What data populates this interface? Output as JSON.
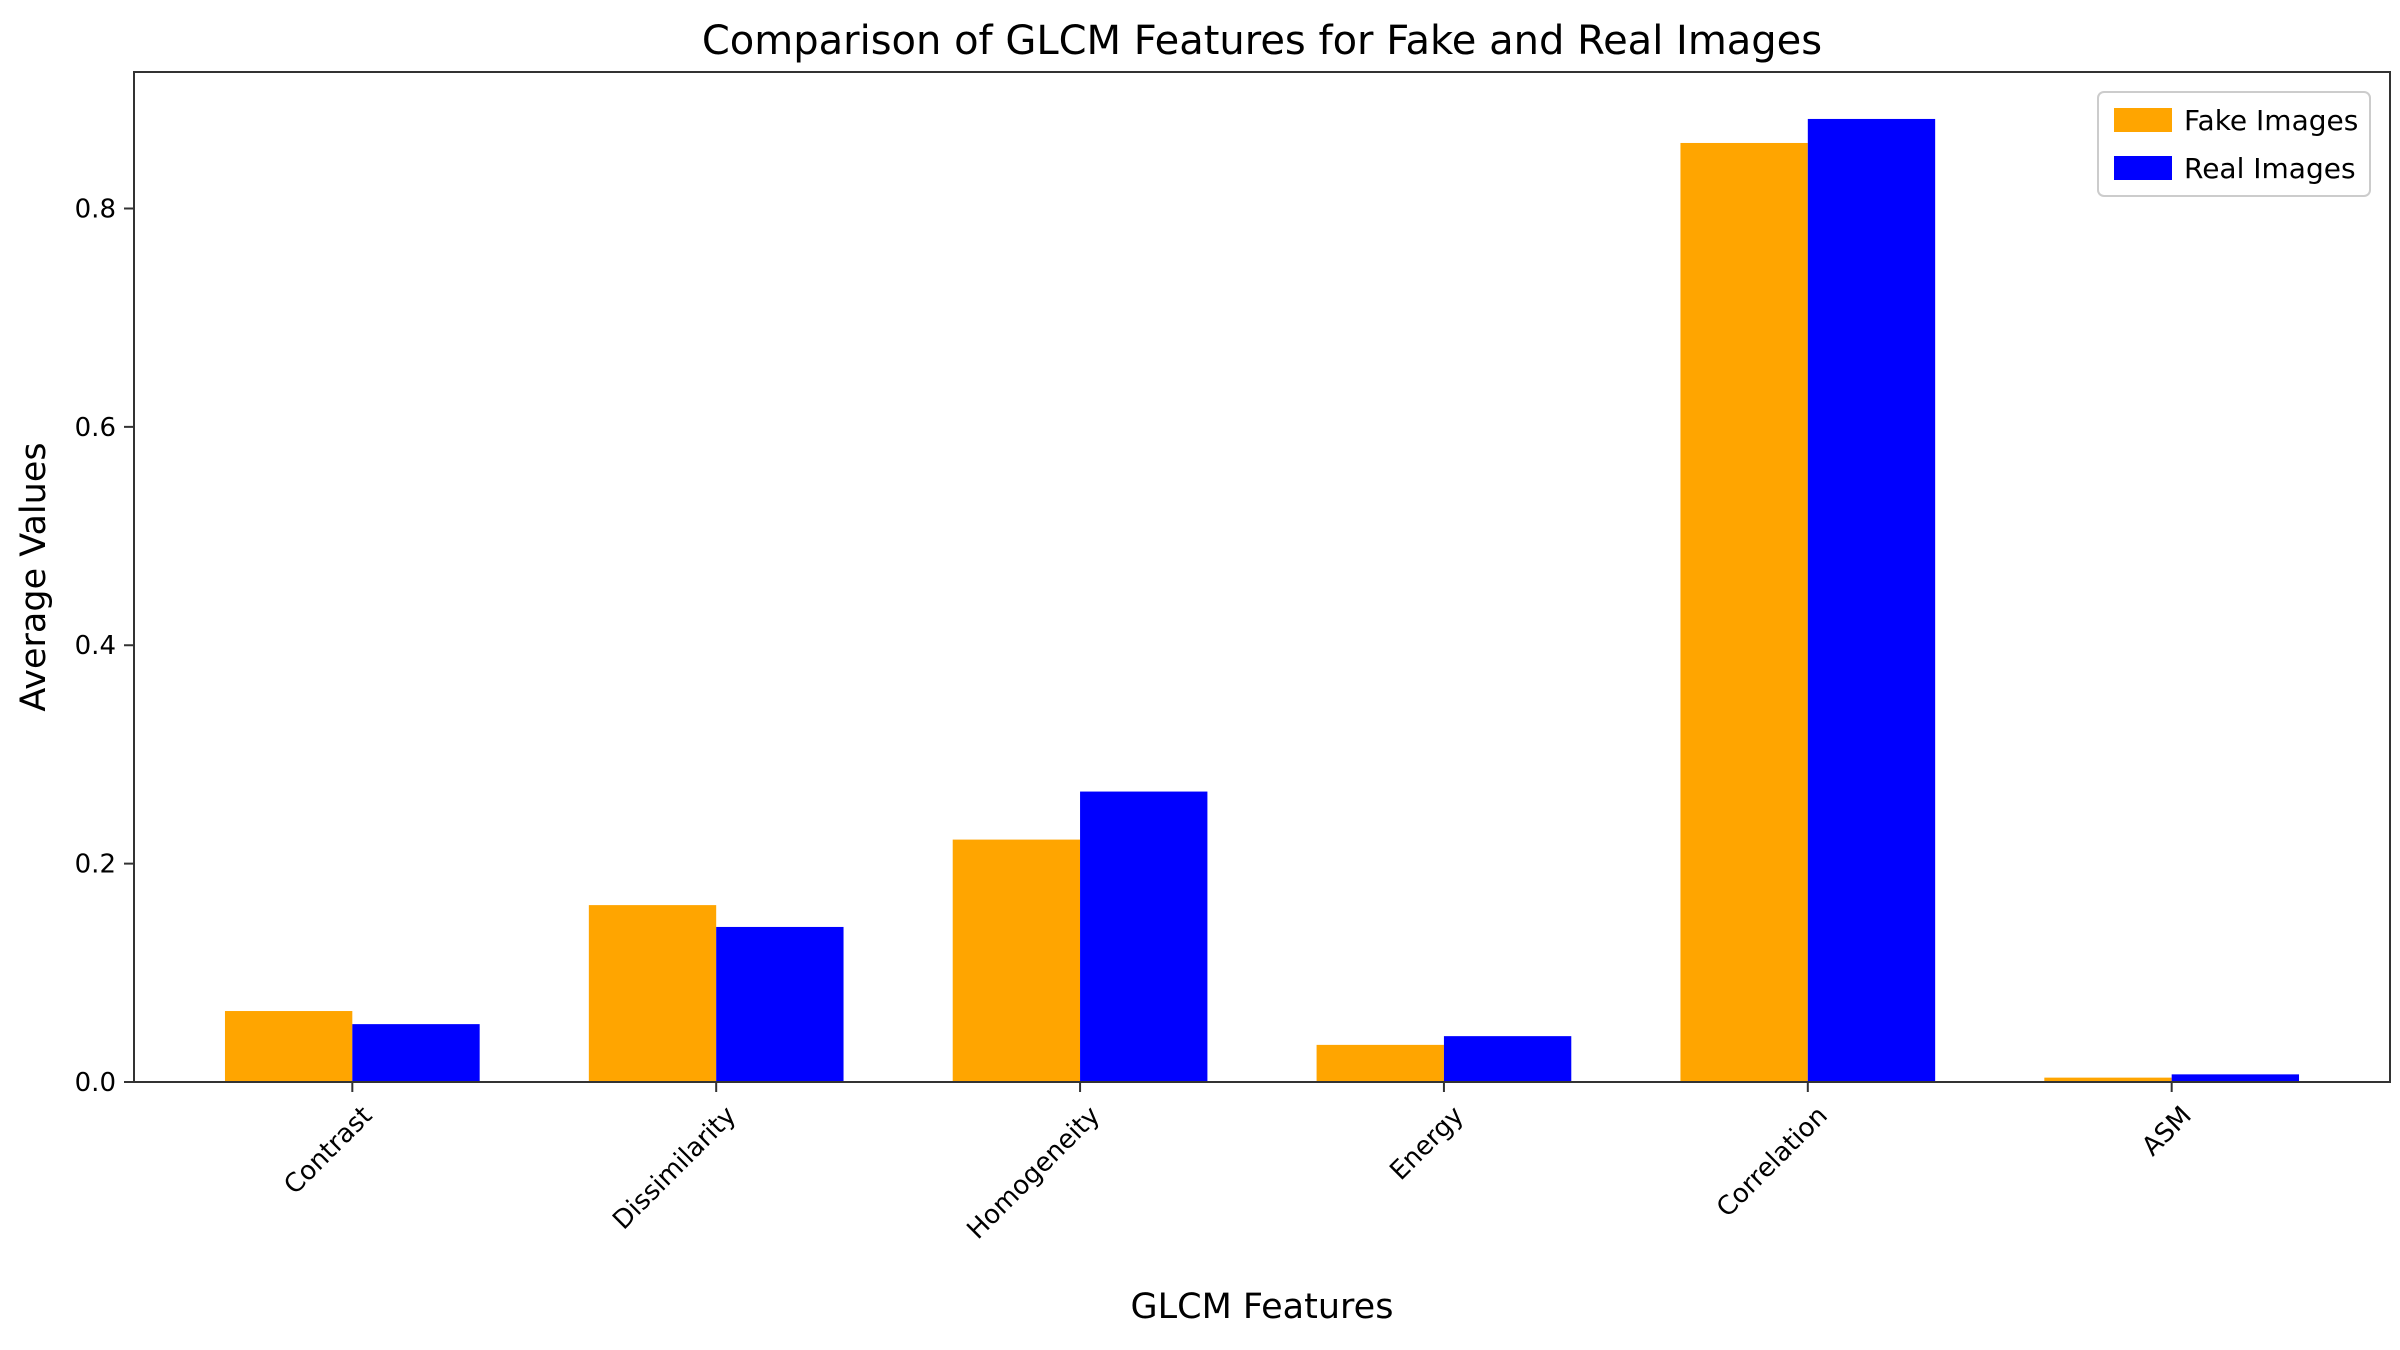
{
  "chart_data": {
    "type": "bar",
    "title": "Comparison of GLCM Features for Fake and Real Images",
    "xlabel": "GLCM Features",
    "ylabel": "Average Values",
    "categories": [
      "Contrast",
      "Dissimilarity",
      "Homogeneity",
      "Energy",
      "Correlation",
      "ASM"
    ],
    "series": [
      {
        "name": "Fake Images",
        "color": "#ffa500",
        "values": [
          0.065,
          0.162,
          0.222,
          0.034,
          0.86,
          0.004
        ]
      },
      {
        "name": "Real Images",
        "color": "#0000ff",
        "values": [
          0.053,
          0.142,
          0.266,
          0.042,
          0.882,
          0.007
        ]
      }
    ],
    "ylim": [
      0,
      0.925
    ],
    "yticks": [
      0.0,
      0.2,
      0.4,
      0.6,
      0.8
    ],
    "ytick_labels": [
      "0.0",
      "0.2",
      "0.4",
      "0.6",
      "0.8"
    ],
    "grid": false,
    "legend_position": "top-right",
    "xtick_rotation": "45 degrees"
  }
}
